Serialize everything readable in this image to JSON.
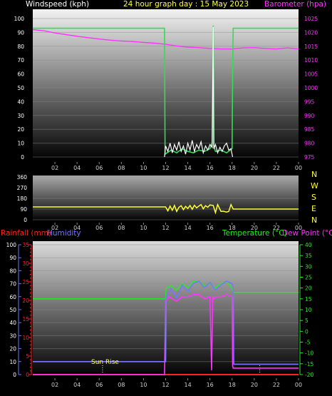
{
  "header": {
    "left": "Windspeed (kph)",
    "center": "24 hour graph day : 15 May 2023",
    "right": "Barometer (hpa)"
  },
  "colors": {
    "windspeed": "#ffffff",
    "gust": "#33dd55",
    "barometer": "#ff33ff",
    "direction": "#ffff33",
    "rainfall": "#ff2222",
    "humidity": "#7777ff",
    "temperature": "#22ee22",
    "dewpoint": "#ff33ff",
    "hour_labels": "#cccccc",
    "tick_blue": "#6677ff",
    "tick_red": "#ff2222"
  },
  "panel2": {
    "direction_labels": [
      "N",
      "W",
      "S",
      "E",
      "N"
    ]
  },
  "panel3": {
    "left_a": "Rainfall (mm)",
    "left_b": "Humidity",
    "right_a": "Temperature (°C)",
    "right_b": "Dew Point (°C)",
    "sunrise_label": "Sun Rise"
  },
  "chart_data": [
    {
      "type": "line",
      "x_ticks": [
        "02",
        "04",
        "06",
        "08",
        "10",
        "12",
        "14",
        "16",
        "18",
        "20",
        "22",
        "00"
      ],
      "left_axis": {
        "label": "Windspeed (kph)",
        "range": [
          0,
          100
        ],
        "ticks": [
          0,
          10,
          20,
          30,
          40,
          50,
          60,
          70,
          80,
          90,
          100
        ]
      },
      "right_axis": {
        "label": "Barometer (hpa)",
        "range": [
          975,
          1025
        ],
        "ticks": [
          975,
          980,
          985,
          990,
          995,
          1000,
          1005,
          1010,
          1015,
          1020,
          1025
        ]
      },
      "series": [
        {
          "name": "Barometer (hpa)",
          "axis": "right",
          "x": [
            0.0,
            1.0,
            2.0,
            3.0,
            4.0,
            5.0,
            6.0,
            7.0,
            8.0,
            9.0,
            10.0,
            11.0,
            12.0,
            13.0,
            14.0,
            15.0,
            16.0,
            17.0,
            18.0,
            19.0,
            20.0,
            21.0,
            22.0,
            23.0,
            24.0
          ],
          "y": [
            1021,
            1020.6,
            1019.8,
            1019.2,
            1018.6,
            1018.1,
            1017.6,
            1017.2,
            1016.9,
            1016.7,
            1016.4,
            1016.1,
            1015.7,
            1015.1,
            1014.7,
            1014.5,
            1014.2,
            1014.0,
            1014.0,
            1014.4,
            1014.5,
            1014.2,
            1014.0,
            1014.4,
            1014.0
          ]
        },
        {
          "name": "Gust",
          "axis": "left",
          "x": [
            0.0,
            11.9,
            11.95,
            12.5,
            13.0,
            13.5,
            14.0,
            14.5,
            15.0,
            15.5,
            16.0,
            16.2,
            16.3,
            16.35,
            16.5,
            17.0,
            17.5,
            18.0,
            18.05,
            18.1,
            24.0
          ],
          "y": [
            93,
            93,
            2,
            5,
            3,
            6,
            4,
            3,
            5,
            4,
            6,
            10,
            95,
            8,
            4,
            5,
            3,
            6,
            60,
            93,
            93
          ]
        },
        {
          "name": "Windspeed",
          "axis": "left",
          "x": [
            11.9,
            12.0,
            12.2,
            12.4,
            12.6,
            12.8,
            13.0,
            13.2,
            13.4,
            13.6,
            13.8,
            14.0,
            14.2,
            14.4,
            14.6,
            14.8,
            15.0,
            15.2,
            15.4,
            15.6,
            15.8,
            16.0,
            16.2,
            16.3,
            16.35,
            16.5,
            16.7,
            16.9,
            17.1,
            17.3,
            17.5,
            17.7,
            17.9,
            18.05
          ],
          "y": [
            0,
            8,
            4,
            10,
            3,
            9,
            5,
            11,
            4,
            8,
            2,
            10,
            5,
            12,
            4,
            9,
            6,
            11,
            3,
            8,
            5,
            9,
            7,
            94,
            6,
            9,
            3,
            7,
            4,
            8,
            10,
            5,
            6,
            0
          ]
        }
      ]
    },
    {
      "type": "line",
      "x_ticks": [
        "02",
        "04",
        "06",
        "08",
        "10",
        "12",
        "14",
        "16",
        "18",
        "20",
        "22",
        "00"
      ],
      "left_axis": {
        "range": [
          0,
          360
        ],
        "ticks": [
          0,
          90,
          180,
          270,
          360
        ]
      },
      "right_axis_labels": [
        "N",
        "W",
        "S",
        "E",
        "N"
      ],
      "series": [
        {
          "name": "Wind Direction",
          "axis": "left",
          "x": [
            0.0,
            12.0,
            12.2,
            12.4,
            12.6,
            12.8,
            13.0,
            13.2,
            13.4,
            13.6,
            13.8,
            14.0,
            14.2,
            14.4,
            14.6,
            14.8,
            15.0,
            15.2,
            15.4,
            15.6,
            15.8,
            16.0,
            16.3,
            16.5,
            16.7,
            17.0,
            17.2,
            17.5,
            17.7,
            17.9,
            18.1,
            24.0
          ],
          "y": [
            108,
            108,
            75,
            115,
            80,
            120,
            70,
            105,
            118,
            85,
            112,
            95,
            120,
            88,
            122,
            100,
            115,
            128,
            92,
            118,
            105,
            125,
            120,
            60,
            128,
            70,
            72,
            65,
            70,
            128,
            90,
            90
          ]
        }
      ]
    },
    {
      "type": "line",
      "x_ticks": [
        "02",
        "04",
        "06",
        "08",
        "10",
        "12",
        "14",
        "16",
        "18",
        "20",
        "22",
        "00"
      ],
      "left_axis_outer": {
        "label": "Humidity",
        "range": [
          0,
          100
        ],
        "ticks": [
          0,
          10,
          20,
          30,
          40,
          50,
          60,
          70,
          80,
          90,
          100
        ]
      },
      "left_axis_inner": {
        "label": "Rainfall (mm)",
        "range": [
          0,
          35
        ],
        "ticks": [
          0,
          5,
          10,
          15,
          20,
          25,
          30,
          35
        ]
      },
      "right_axis": {
        "label": "Temperature (°C)",
        "range": [
          -20,
          40
        ],
        "ticks": [
          -20,
          -15,
          -10,
          -5,
          0,
          5,
          10,
          15,
          20,
          25,
          30,
          35,
          40
        ]
      },
      "annotations": [
        {
          "text": "Sun Rise",
          "x": 6.3
        },
        {
          "text": "",
          "x": 20.5
        }
      ],
      "series": [
        {
          "name": "Humidity",
          "axis": "left_outer",
          "x": [
            0.0,
            12.0,
            12.05,
            12.5,
            13.0,
            13.5,
            14.0,
            14.5,
            15.0,
            15.5,
            16.0,
            16.5,
            17.0,
            17.5,
            18.0,
            18.1,
            18.15,
            24.0
          ],
          "y": [
            10,
            10,
            60,
            66,
            59,
            69,
            64,
            70,
            72,
            67,
            71,
            65,
            69,
            72,
            70,
            68,
            8,
            8
          ]
        },
        {
          "name": "Temperature (°C)",
          "axis": "right",
          "x": [
            0.0,
            12.0,
            12.05,
            12.5,
            13.0,
            13.5,
            14.0,
            14.5,
            15.0,
            15.5,
            16.0,
            16.5,
            17.0,
            17.5,
            18.0,
            18.1,
            24.0
          ],
          "y": [
            15,
            15,
            20,
            21,
            19,
            22,
            20,
            23,
            23,
            21,
            22,
            20,
            22,
            23,
            20,
            18,
            18
          ]
        },
        {
          "name": "Dew Point (°C)",
          "axis": "right",
          "x": [
            0.0,
            11.9,
            12.0,
            12.3,
            12.6,
            13.0,
            13.5,
            14.0,
            14.5,
            15.0,
            15.5,
            16.0,
            16.15,
            16.25,
            16.35,
            16.5,
            17.0,
            17.5,
            18.0,
            18.05,
            18.1,
            24.0
          ],
          "y": [
            -20,
            -20,
            14,
            16,
            15,
            14,
            16,
            16,
            17,
            17,
            15,
            16,
            -18,
            16,
            15,
            16,
            16,
            17,
            16,
            -16,
            -17,
            -17
          ]
        },
        {
          "name": "Rainfall (mm)",
          "axis": "left_inner",
          "x": [
            0.0,
            24.0
          ],
          "y": [
            0,
            0
          ]
        }
      ]
    }
  ]
}
